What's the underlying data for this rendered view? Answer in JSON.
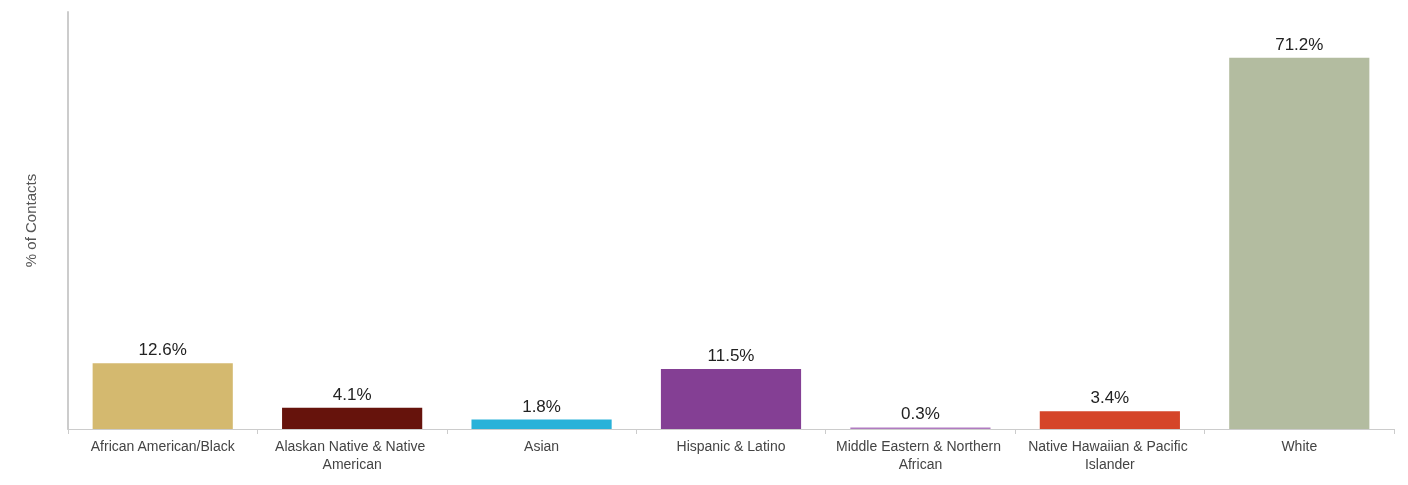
{
  "chart_data": {
    "type": "bar",
    "ylabel": "% of Contacts",
    "categories": [
      "African American/Black",
      "Alaskan Native & Native American",
      "Asian",
      "Hispanic & Latino",
      "Middle Eastern & Northern African",
      "Native Hawaiian & Pacific Islander",
      "White"
    ],
    "values": [
      12.6,
      4.1,
      1.8,
      11.5,
      0.3,
      3.4,
      71.2
    ],
    "value_labels": [
      "12.6%",
      "4.1%",
      "1.8%",
      "11.5%",
      "0.3%",
      "3.4%",
      "71.2%"
    ],
    "colors": [
      "#d4b96f",
      "#66130c",
      "#29b2d9",
      "#843f94",
      "#b07bc0",
      "#d54529",
      "#b3bca0"
    ]
  }
}
